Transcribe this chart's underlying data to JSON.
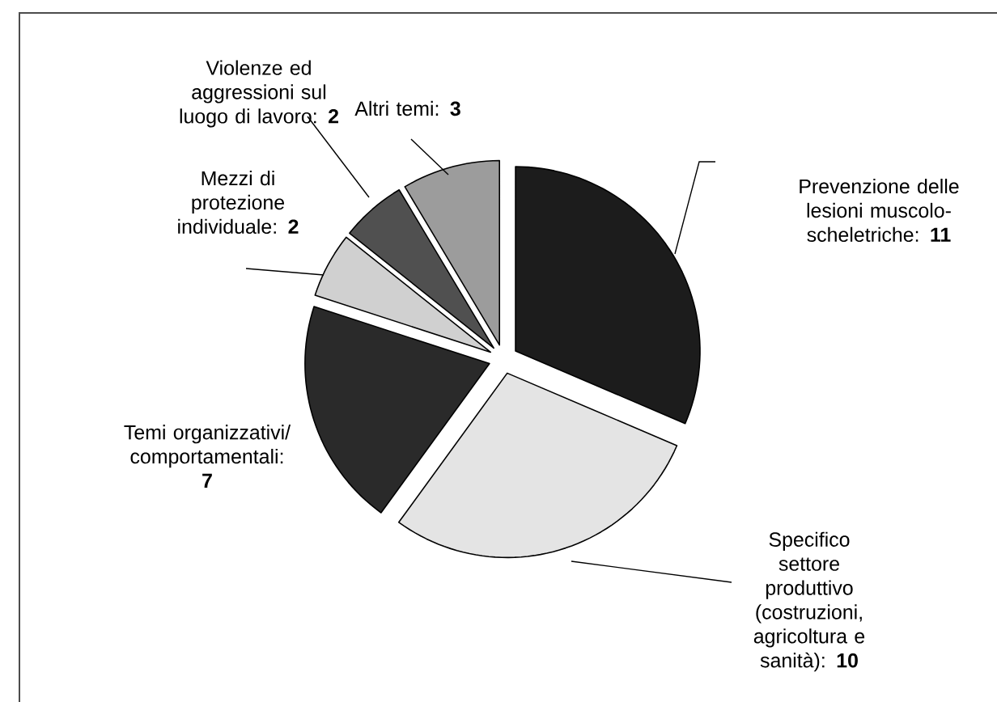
{
  "chart_data": {
    "type": "pie",
    "categories": [
      "Prevenzione delle lesioni muscolo-scheletriche",
      "Specifico settore produttivo (costruzioni, agricoltura e sanità)",
      "Temi organizzativi/ comportamentali",
      "Mezzi di protezione individuale",
      "Violenze ed aggressioni sul luogo di lavoro",
      "Altri temi"
    ],
    "values": [
      11,
      10,
      7,
      2,
      2,
      3
    ],
    "colors": [
      "#1c1c1c",
      "#e4e4e4",
      "#2a2a2a",
      "#d0d0d0",
      "#505050",
      "#9c9c9c"
    ],
    "value_labels": [
      ": **11**",
      ": **10**",
      ": **7**",
      ": **2**",
      ": **2**",
      ": **3**"
    ]
  }
}
